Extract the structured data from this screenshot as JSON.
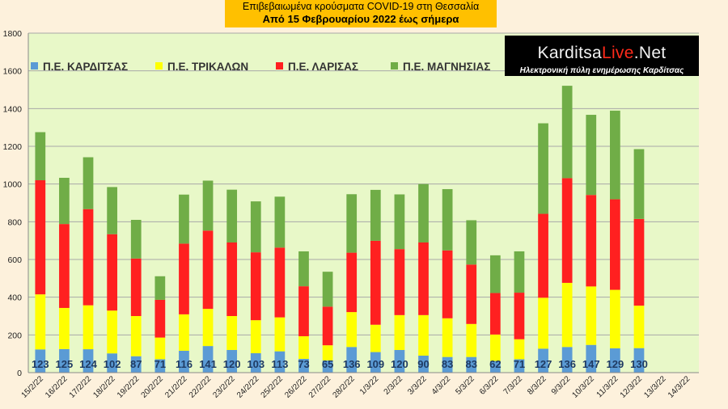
{
  "title": {
    "line1": "Επιβεβαιωμένα κρούσματα COVID-19 στη Θεσσαλία",
    "line2": "Από 15 Φεβρουαρίου 2022 έως σήμερα"
  },
  "logo": {
    "text_before": "Karditsa",
    "text_accent": "Live",
    "text_after": ".Net",
    "tagline": "Ηλεκτρονική πύλη ενημέρωσης Καρδίτσας"
  },
  "chart_data": {
    "type": "bar",
    "stacked": true,
    "title": "Επιβεβαιωμένα κρούσματα COVID-19 στη Θεσσαλία",
    "subtitle": "Από 15 Φεβρουαρίου 2022 έως σήμερα",
    "xlabel": "",
    "ylabel": "",
    "ylim": [
      0,
      1800
    ],
    "yticks": [
      0,
      200,
      400,
      600,
      800,
      1000,
      1200,
      1400,
      1600,
      1800
    ],
    "grid": true,
    "legend_position": "top-left",
    "categories": [
      "15/2/22",
      "16/2/22",
      "17/2/22",
      "18/2/22",
      "19/2/22",
      "20/2/22",
      "21/2/22",
      "22/2/22",
      "23/2/22",
      "24/2/22",
      "25/2/22",
      "26/2/22",
      "27/2/22",
      "28/2/22",
      "1/3/22",
      "2/3/22",
      "3/3/22",
      "4/3/22",
      "5/3/22",
      "6/3/22",
      "7/3/22",
      "8/3/22",
      "9/3/22",
      "10/3/22",
      "11/3/22",
      "12/3/22",
      "13/3/22",
      "14/3/22"
    ],
    "series": [
      {
        "name": "Π.Ε. ΚΑΡΔΙΤΣΑΣ",
        "color": "#5b9bd5",
        "values": [
          123,
          125,
          124,
          102,
          87,
          71,
          116,
          141,
          120,
          103,
          113,
          73,
          65,
          136,
          109,
          120,
          90,
          83,
          83,
          62,
          71,
          127,
          136,
          147,
          129,
          130,
          null,
          null
        ]
      },
      {
        "name": "Π.Ε. ΤΡΙΚΑΛΩΝ",
        "color": "#ffff00",
        "values": [
          292,
          218,
          233,
          227,
          213,
          115,
          193,
          197,
          180,
          175,
          180,
          120,
          80,
          185,
          145,
          185,
          215,
          205,
          175,
          140,
          106,
          270,
          340,
          310,
          310,
          225,
          null,
          null
        ]
      },
      {
        "name": "Π.Ε. ΛΑΡΙΣΑΣ",
        "color": "#ff2020",
        "values": [
          605,
          445,
          510,
          405,
          305,
          200,
          375,
          415,
          390,
          360,
          370,
          265,
          205,
          315,
          445,
          350,
          385,
          360,
          315,
          220,
          247,
          445,
          555,
          485,
          480,
          460,
          null,
          null
        ]
      },
      {
        "name": "Π.Ε. ΜΑΓΝΗΣΙΑΣ",
        "color": "#70ad47",
        "values": [
          255,
          245,
          275,
          250,
          205,
          125,
          260,
          265,
          280,
          270,
          270,
          185,
          185,
          310,
          270,
          290,
          310,
          325,
          235,
          200,
          219,
          480,
          490,
          425,
          470,
          370,
          null,
          null
        ]
      }
    ],
    "data_labels_series": "Π.Ε. ΚΑΡΔΙΤΣΑΣ",
    "plot_background": "#e8f8c8"
  }
}
